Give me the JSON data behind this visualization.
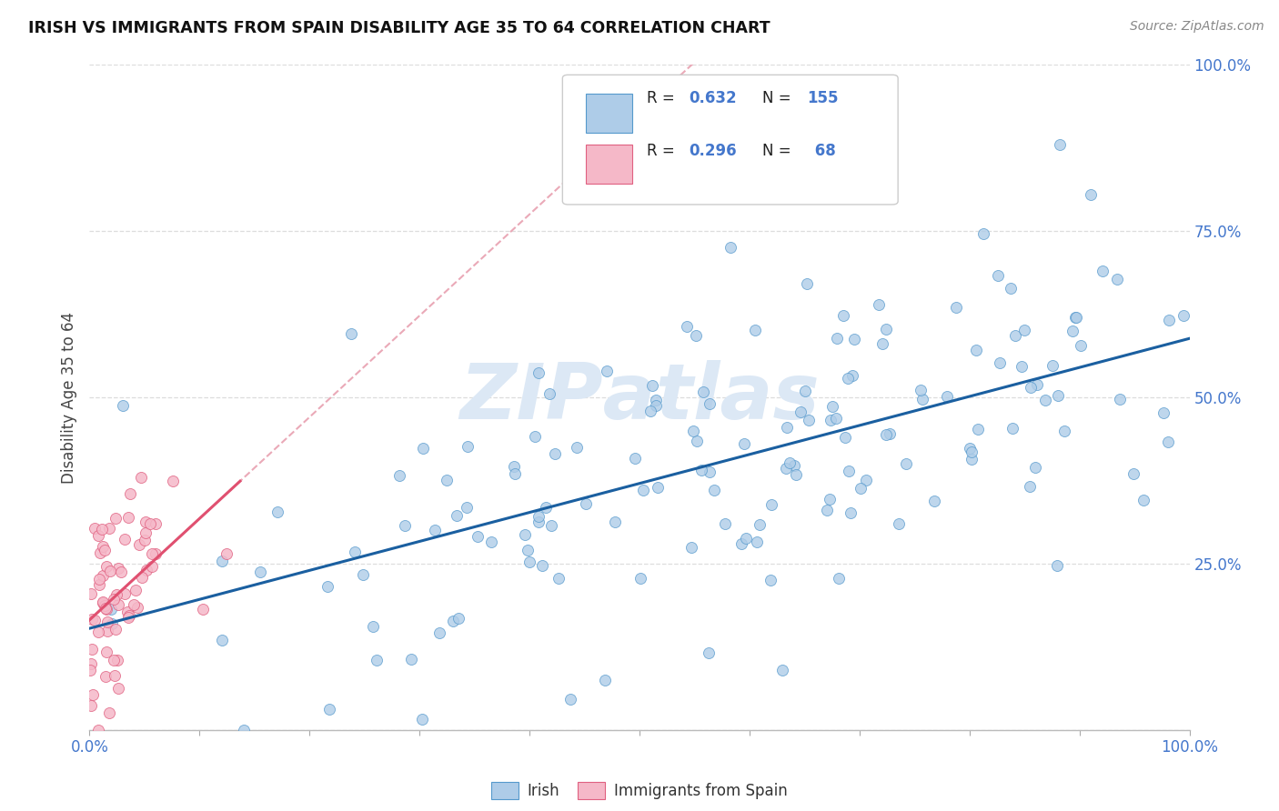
{
  "title": "IRISH VS IMMIGRANTS FROM SPAIN DISABILITY AGE 35 TO 64 CORRELATION CHART",
  "source": "Source: ZipAtlas.com",
  "ylabel": "Disability Age 35 to 64",
  "irish_color": "#aecce8",
  "spain_color": "#f5b8c8",
  "irish_edge_color": "#5599cc",
  "spain_edge_color": "#e06080",
  "irish_line_color": "#1a5fa0",
  "spain_line_color": "#e05070",
  "dashed_line_color": "#e8a0b0",
  "background_color": "#ffffff",
  "grid_color": "#dddddd",
  "title_color": "#111111",
  "source_color": "#888888",
  "tick_color": "#4477cc",
  "watermark_color": "#dce8f5",
  "legend_r_color": "#111111",
  "legend_n_color": "#4477cc",
  "legend_val_color": "#4477cc",
  "R_irish": 0.632,
  "N_irish": 155,
  "R_spain": 0.296,
  "N_spain": 68,
  "seed_irish": 42,
  "seed_spain": 7
}
